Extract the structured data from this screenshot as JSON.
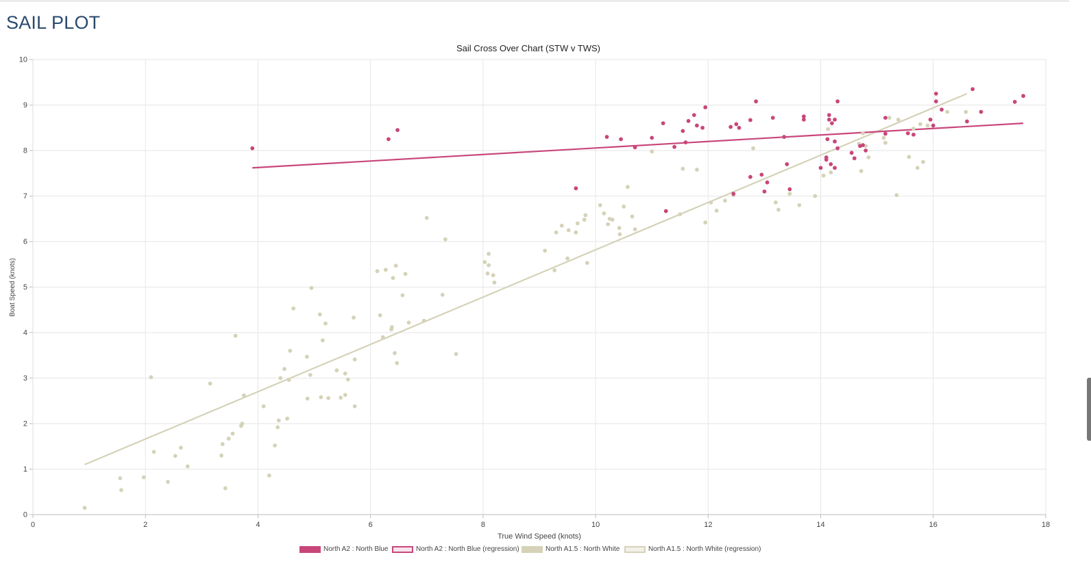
{
  "page": {
    "title": "SAIL PLOT"
  },
  "chart_data": {
    "type": "scatter",
    "title": "Sail Cross Over Chart (STW v TWS)",
    "xlabel": "True Wind Speed (knots)",
    "ylabel": "Boat Speed (knots)",
    "xlim": [
      0,
      18
    ],
    "ylim": [
      0,
      10
    ],
    "xticks": [
      0,
      2,
      4,
      6,
      8,
      10,
      12,
      14,
      16,
      18
    ],
    "yticks": [
      0,
      1,
      2,
      3,
      4,
      5,
      6,
      7,
      8,
      9,
      10
    ],
    "grid": true,
    "legend_position": "bottom",
    "series": [
      {
        "name": "North A2 : North Blue",
        "color": "#c8467a",
        "points": [
          [
            3.9,
            8.05
          ],
          [
            6.32,
            8.25
          ],
          [
            6.48,
            8.45
          ],
          [
            9.65,
            7.17
          ],
          [
            10.2,
            8.3
          ],
          [
            10.45,
            8.25
          ],
          [
            10.7,
            8.07
          ],
          [
            11.0,
            8.28
          ],
          [
            11.2,
            8.6
          ],
          [
            11.25,
            6.67
          ],
          [
            11.4,
            8.08
          ],
          [
            11.55,
            8.43
          ],
          [
            11.6,
            8.18
          ],
          [
            11.65,
            8.65
          ],
          [
            11.75,
            8.78
          ],
          [
            11.8,
            8.55
          ],
          [
            11.9,
            8.5
          ],
          [
            11.95,
            8.95
          ],
          [
            12.4,
            8.52
          ],
          [
            12.45,
            7.05
          ],
          [
            12.5,
            8.58
          ],
          [
            12.55,
            8.5
          ],
          [
            12.75,
            8.67
          ],
          [
            12.75,
            7.42
          ],
          [
            12.85,
            9.08
          ],
          [
            12.95,
            7.47
          ],
          [
            13.0,
            7.1
          ],
          [
            13.05,
            7.3
          ],
          [
            13.15,
            8.72
          ],
          [
            13.35,
            8.3
          ],
          [
            13.4,
            7.7
          ],
          [
            13.45,
            7.15
          ],
          [
            13.7,
            8.75
          ],
          [
            13.7,
            8.68
          ],
          [
            14.0,
            7.62
          ],
          [
            14.1,
            7.85
          ],
          [
            14.1,
            7.8
          ],
          [
            14.12,
            8.25
          ],
          [
            14.15,
            8.78
          ],
          [
            14.15,
            8.68
          ],
          [
            14.18,
            7.7
          ],
          [
            14.2,
            8.6
          ],
          [
            14.25,
            8.2
          ],
          [
            14.25,
            8.68
          ],
          [
            14.25,
            7.62
          ],
          [
            14.3,
            9.08
          ],
          [
            14.3,
            8.05
          ],
          [
            14.55,
            7.95
          ],
          [
            14.6,
            7.83
          ],
          [
            14.7,
            8.1
          ],
          [
            14.75,
            8.12
          ],
          [
            14.8,
            8.0
          ],
          [
            15.15,
            8.72
          ],
          [
            15.15,
            8.37
          ],
          [
            15.55,
            8.38
          ],
          [
            15.65,
            8.35
          ],
          [
            15.95,
            8.68
          ],
          [
            16.0,
            8.55
          ],
          [
            16.05,
            9.08
          ],
          [
            16.05,
            9.25
          ],
          [
            16.15,
            8.9
          ],
          [
            16.6,
            8.64
          ],
          [
            16.7,
            9.35
          ],
          [
            16.85,
            8.85
          ],
          [
            17.45,
            9.07
          ],
          [
            17.6,
            9.2
          ]
        ],
        "regression": [
          [
            3.9,
            7.62
          ],
          [
            17.6,
            8.6
          ]
        ]
      },
      {
        "name": "North A1.5 : North White",
        "color": "#d5d2b8",
        "points": [
          [
            0.92,
            0.15
          ],
          [
            1.55,
            0.8
          ],
          [
            1.57,
            0.54
          ],
          [
            1.97,
            0.82
          ],
          [
            2.1,
            3.02
          ],
          [
            2.15,
            1.38
          ],
          [
            2.4,
            0.72
          ],
          [
            2.53,
            1.29
          ],
          [
            2.63,
            1.47
          ],
          [
            2.75,
            1.06
          ],
          [
            3.15,
            2.88
          ],
          [
            3.35,
            1.3
          ],
          [
            3.37,
            1.55
          ],
          [
            3.42,
            0.58
          ],
          [
            3.48,
            1.67
          ],
          [
            3.55,
            1.78
          ],
          [
            3.6,
            3.93
          ],
          [
            3.7,
            1.95
          ],
          [
            3.72,
            2.0
          ],
          [
            3.75,
            2.62
          ],
          [
            4.1,
            2.38
          ],
          [
            4.2,
            0.86
          ],
          [
            4.3,
            1.52
          ],
          [
            4.35,
            1.92
          ],
          [
            4.37,
            2.07
          ],
          [
            4.4,
            3.0
          ],
          [
            4.47,
            3.2
          ],
          [
            4.52,
            2.11
          ],
          [
            4.55,
            2.96
          ],
          [
            4.57,
            3.6
          ],
          [
            4.63,
            4.53
          ],
          [
            4.87,
            3.47
          ],
          [
            4.88,
            2.55
          ],
          [
            4.93,
            3.07
          ],
          [
            4.95,
            4.98
          ],
          [
            5.1,
            4.4
          ],
          [
            5.12,
            2.58
          ],
          [
            5.15,
            3.83
          ],
          [
            5.2,
            4.2
          ],
          [
            5.25,
            2.56
          ],
          [
            5.4,
            3.17
          ],
          [
            5.47,
            2.57
          ],
          [
            5.55,
            3.1
          ],
          [
            5.55,
            2.63
          ],
          [
            5.6,
            2.97
          ],
          [
            5.7,
            4.33
          ],
          [
            5.72,
            3.41
          ],
          [
            5.72,
            2.38
          ],
          [
            6.12,
            5.35
          ],
          [
            6.17,
            4.38
          ],
          [
            6.22,
            3.9
          ],
          [
            6.27,
            5.38
          ],
          [
            6.37,
            4.07
          ],
          [
            6.38,
            4.12
          ],
          [
            6.4,
            5.2
          ],
          [
            6.43,
            3.55
          ],
          [
            6.45,
            5.47
          ],
          [
            6.47,
            3.33
          ],
          [
            6.57,
            4.82
          ],
          [
            6.62,
            5.29
          ],
          [
            6.68,
            4.22
          ],
          [
            6.95,
            4.26
          ],
          [
            7.0,
            6.52
          ],
          [
            7.28,
            4.83
          ],
          [
            7.33,
            6.05
          ],
          [
            7.52,
            3.53
          ],
          [
            8.03,
            5.55
          ],
          [
            8.08,
            5.3
          ],
          [
            8.1,
            5.48
          ],
          [
            8.1,
            5.73
          ],
          [
            8.18,
            5.26
          ],
          [
            8.2,
            5.1
          ],
          [
            9.1,
            5.8
          ],
          [
            9.27,
            5.37
          ],
          [
            9.3,
            6.2
          ],
          [
            9.4,
            6.35
          ],
          [
            9.5,
            5.63
          ],
          [
            9.52,
            6.25
          ],
          [
            9.65,
            6.2
          ],
          [
            9.68,
            6.4
          ],
          [
            9.8,
            6.48
          ],
          [
            9.82,
            6.58
          ],
          [
            9.85,
            5.53
          ],
          [
            10.08,
            6.8
          ],
          [
            10.15,
            6.62
          ],
          [
            10.22,
            6.38
          ],
          [
            10.25,
            6.5
          ],
          [
            10.3,
            6.48
          ],
          [
            10.42,
            6.3
          ],
          [
            10.43,
            6.16
          ],
          [
            10.5,
            6.77
          ],
          [
            10.57,
            7.2
          ],
          [
            10.65,
            6.55
          ],
          [
            10.7,
            6.27
          ],
          [
            11.0,
            7.98
          ],
          [
            11.5,
            6.6
          ],
          [
            11.55,
            7.6
          ],
          [
            11.8,
            7.58
          ],
          [
            11.95,
            6.42
          ],
          [
            12.05,
            6.86
          ],
          [
            12.15,
            6.68
          ],
          [
            12.3,
            6.9
          ],
          [
            12.45,
            7.02
          ],
          [
            12.8,
            8.05
          ],
          [
            13.2,
            6.86
          ],
          [
            13.25,
            6.7
          ],
          [
            13.45,
            7.05
          ],
          [
            13.62,
            6.8
          ],
          [
            13.9,
            7.0
          ],
          [
            14.05,
            7.45
          ],
          [
            14.13,
            8.47
          ],
          [
            14.18,
            7.52
          ],
          [
            14.68,
            8.15
          ],
          [
            14.72,
            7.55
          ],
          [
            14.75,
            8.38
          ],
          [
            14.8,
            8.1
          ],
          [
            14.85,
            7.85
          ],
          [
            15.12,
            8.28
          ],
          [
            15.15,
            8.17
          ],
          [
            15.22,
            8.72
          ],
          [
            15.38,
            8.68
          ],
          [
            15.35,
            7.02
          ],
          [
            15.57,
            7.86
          ],
          [
            15.65,
            8.48
          ],
          [
            15.72,
            7.62
          ],
          [
            15.77,
            8.58
          ],
          [
            15.82,
            7.75
          ],
          [
            15.9,
            8.55
          ],
          [
            16.25,
            8.85
          ],
          [
            16.58,
            8.85
          ]
        ],
        "regression": [
          [
            0.92,
            1.1
          ],
          [
            16.6,
            9.25
          ]
        ]
      }
    ],
    "legend": [
      {
        "label": "North A2 : North Blue",
        "style": "filled",
        "color": "#c8467a"
      },
      {
        "label": "North A2 : North Blue (regression)",
        "style": "outline",
        "color": "#c8467a"
      },
      {
        "label": "North A1.5 : North White",
        "style": "filled",
        "color": "#d5d2b8"
      },
      {
        "label": "North A1.5 : North White (regression)",
        "style": "outline",
        "color": "#d5d2b8"
      }
    ]
  }
}
